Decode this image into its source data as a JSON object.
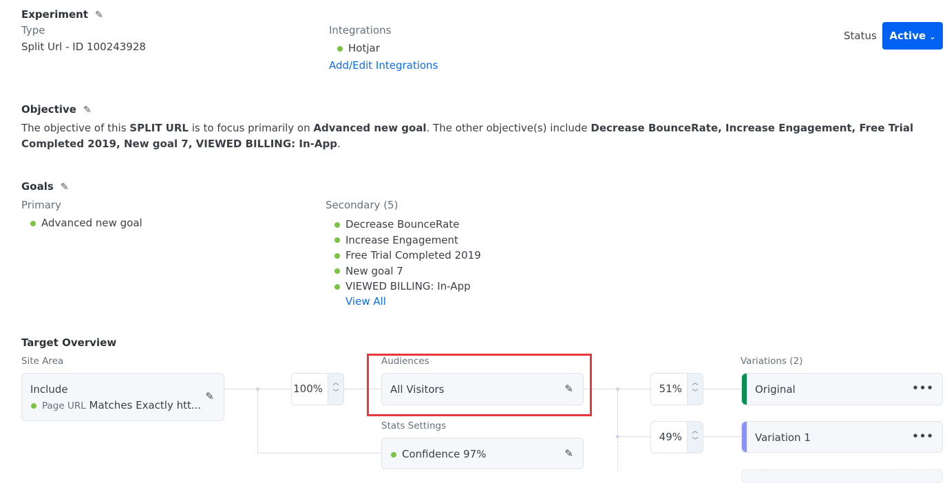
{
  "experiment": {
    "heading": "Experiment",
    "type_label": "Type",
    "type_value": "Split Url - ID 100243928",
    "integrations_label": "Integrations",
    "integrations": [
      "Hotjar"
    ],
    "integrations_link": "Add/Edit Integrations",
    "status_label": "Status",
    "status_value": "Active"
  },
  "objective": {
    "heading": "Objective",
    "t1": "The objective of this ",
    "b1": "SPLIT URL",
    "t2": " is to focus primarily on ",
    "b2": "Advanced new goal",
    "t3": ". The other objective(s) include ",
    "b3": "Decrease BounceRate, Increase Engagement, Free Trial Completed 2019, New goal 7, VIEWED BILLING: In-App",
    "t4": "."
  },
  "goals": {
    "heading": "Goals",
    "primary_label": "Primary",
    "primary": [
      "Advanced new goal"
    ],
    "secondary_label": "Secondary (5)",
    "secondary": [
      "Decrease BounceRate",
      "Increase Engagement",
      "Free Trial Completed 2019",
      "New goal 7",
      "VIEWED BILLING: In-App"
    ],
    "view_all": "View All"
  },
  "target": {
    "heading": "Target Overview",
    "site_area_label": "Site Area",
    "site_area_mode": "Include",
    "site_area_rule_key": "Page URL",
    "site_area_rule_value": "Matches Exactly htt...",
    "traffic": "100%",
    "audiences_label": "Audiences",
    "audience": "All Visitors",
    "stats_label": "Stats Settings",
    "stats": "Confidence 97%",
    "variations_label": "Variations (2)",
    "variations": [
      {
        "name": "Original",
        "split": "51%",
        "color": "#0a8f55"
      },
      {
        "name": "Variation 1",
        "split": "49%",
        "color": "#8a93f5"
      }
    ]
  },
  "colors": {
    "accent": "#0061f2",
    "status_dot": "#7cc243",
    "highlight": "#e8383d"
  }
}
